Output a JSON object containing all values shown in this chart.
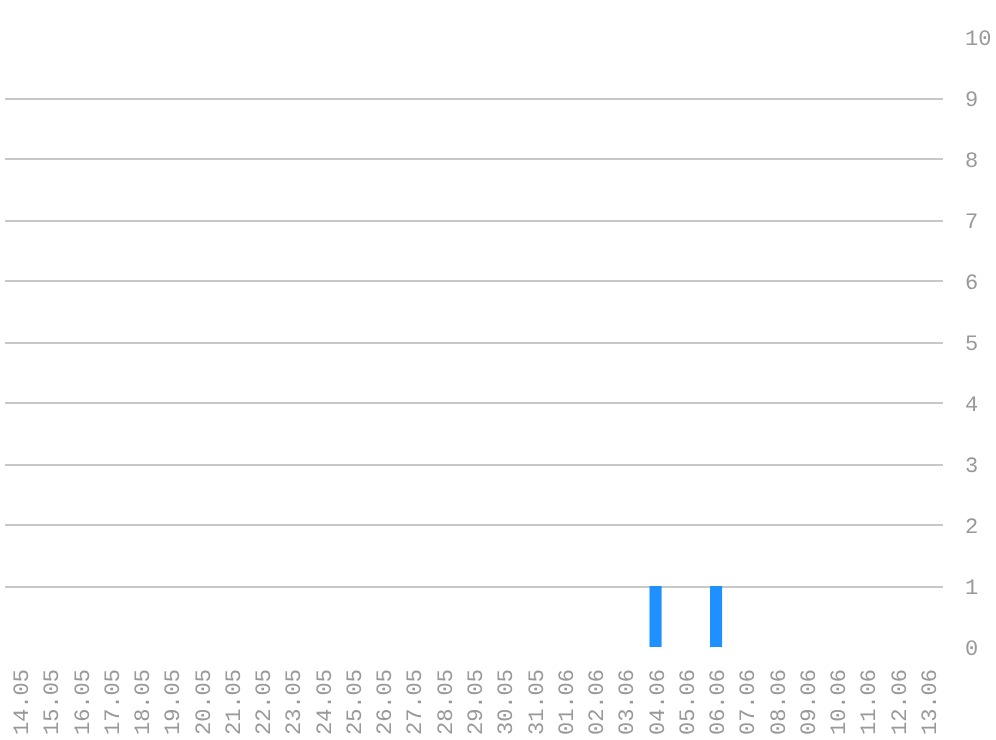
{
  "chart_data": {
    "type": "bar",
    "categories": [
      "14.05",
      "15.05",
      "16.05",
      "17.05",
      "18.05",
      "19.05",
      "20.05",
      "21.05",
      "22.05",
      "23.05",
      "24.05",
      "25.05",
      "26.05",
      "27.05",
      "28.05",
      "29.05",
      "30.05",
      "31.05",
      "01.06",
      "02.06",
      "03.06",
      "04.06",
      "05.06",
      "06.06",
      "07.06",
      "08.06",
      "09.06",
      "10.06",
      "11.06",
      "12.06",
      "13.06"
    ],
    "values": [
      0,
      0,
      0,
      0,
      0,
      0,
      0,
      0,
      0,
      0,
      0,
      0,
      0,
      0,
      0,
      0,
      0,
      0,
      0,
      0,
      0,
      1,
      0,
      1,
      0,
      0,
      0,
      0,
      0,
      0,
      0
    ],
    "color": "#1e90ff",
    "ylim": [
      0,
      10
    ],
    "yticks": [
      0,
      1,
      2,
      3,
      4,
      5,
      6,
      7,
      8,
      9,
      10
    ],
    "grid": "y"
  }
}
